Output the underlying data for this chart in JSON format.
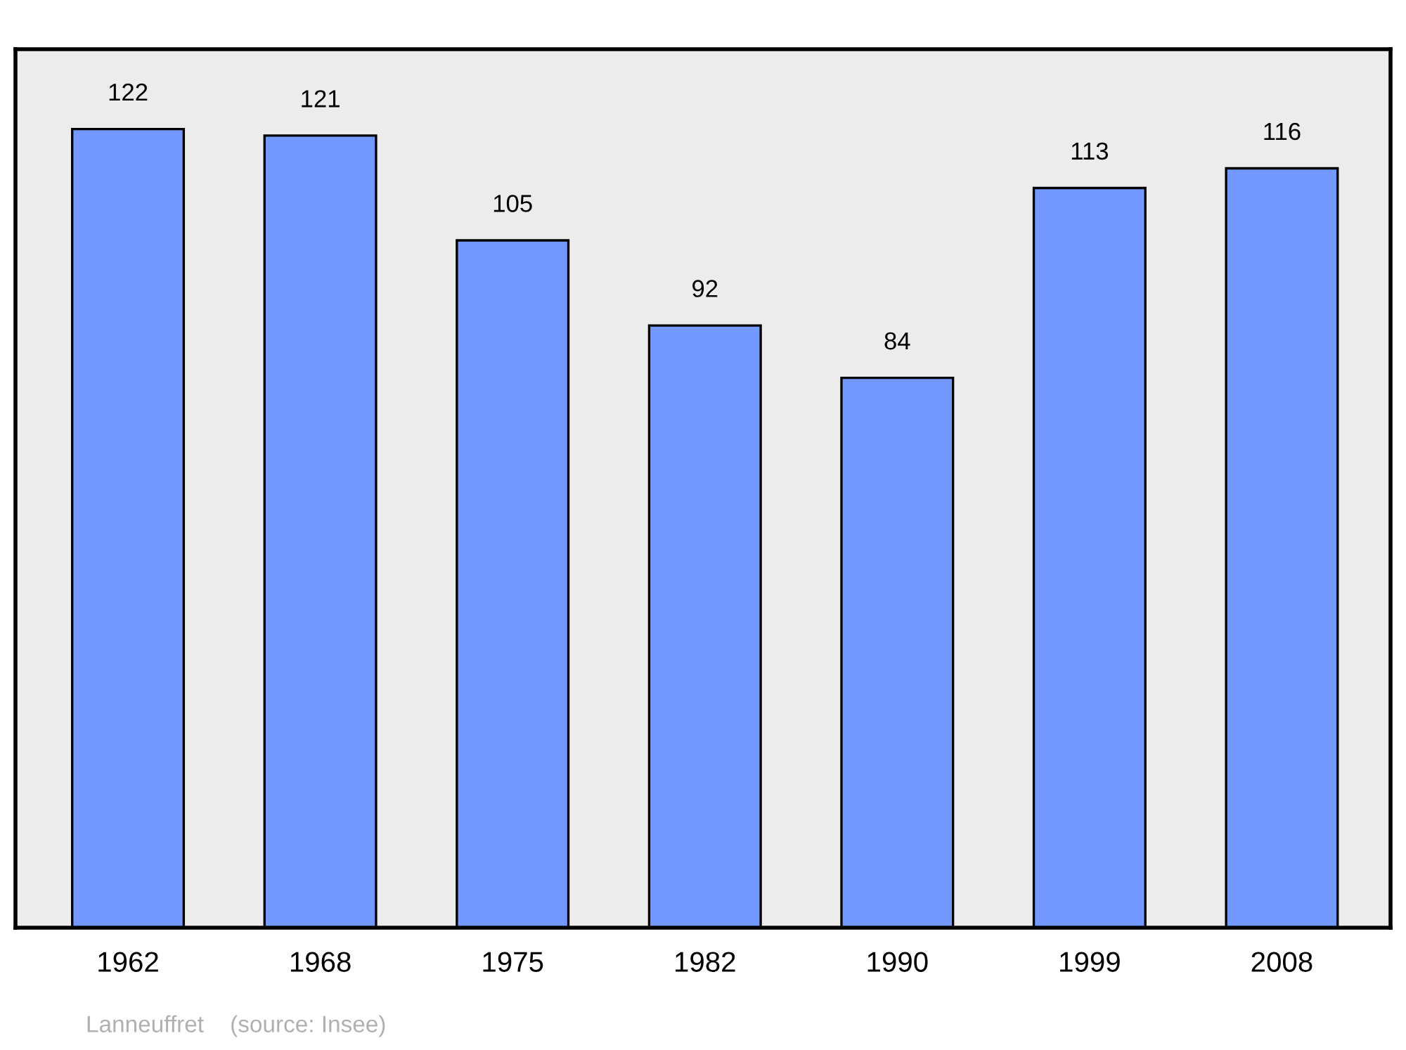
{
  "chart_data": {
    "type": "bar",
    "categories": [
      "1962",
      "1968",
      "1975",
      "1982",
      "1990",
      "1999",
      "2008"
    ],
    "values": [
      122,
      121,
      105,
      92,
      84,
      113,
      116
    ],
    "color": "#7399ff",
    "data_labels": true,
    "grid": false,
    "legend": false,
    "annotations": [
      "Lanneuffret    (source: Insee)"
    ]
  }
}
